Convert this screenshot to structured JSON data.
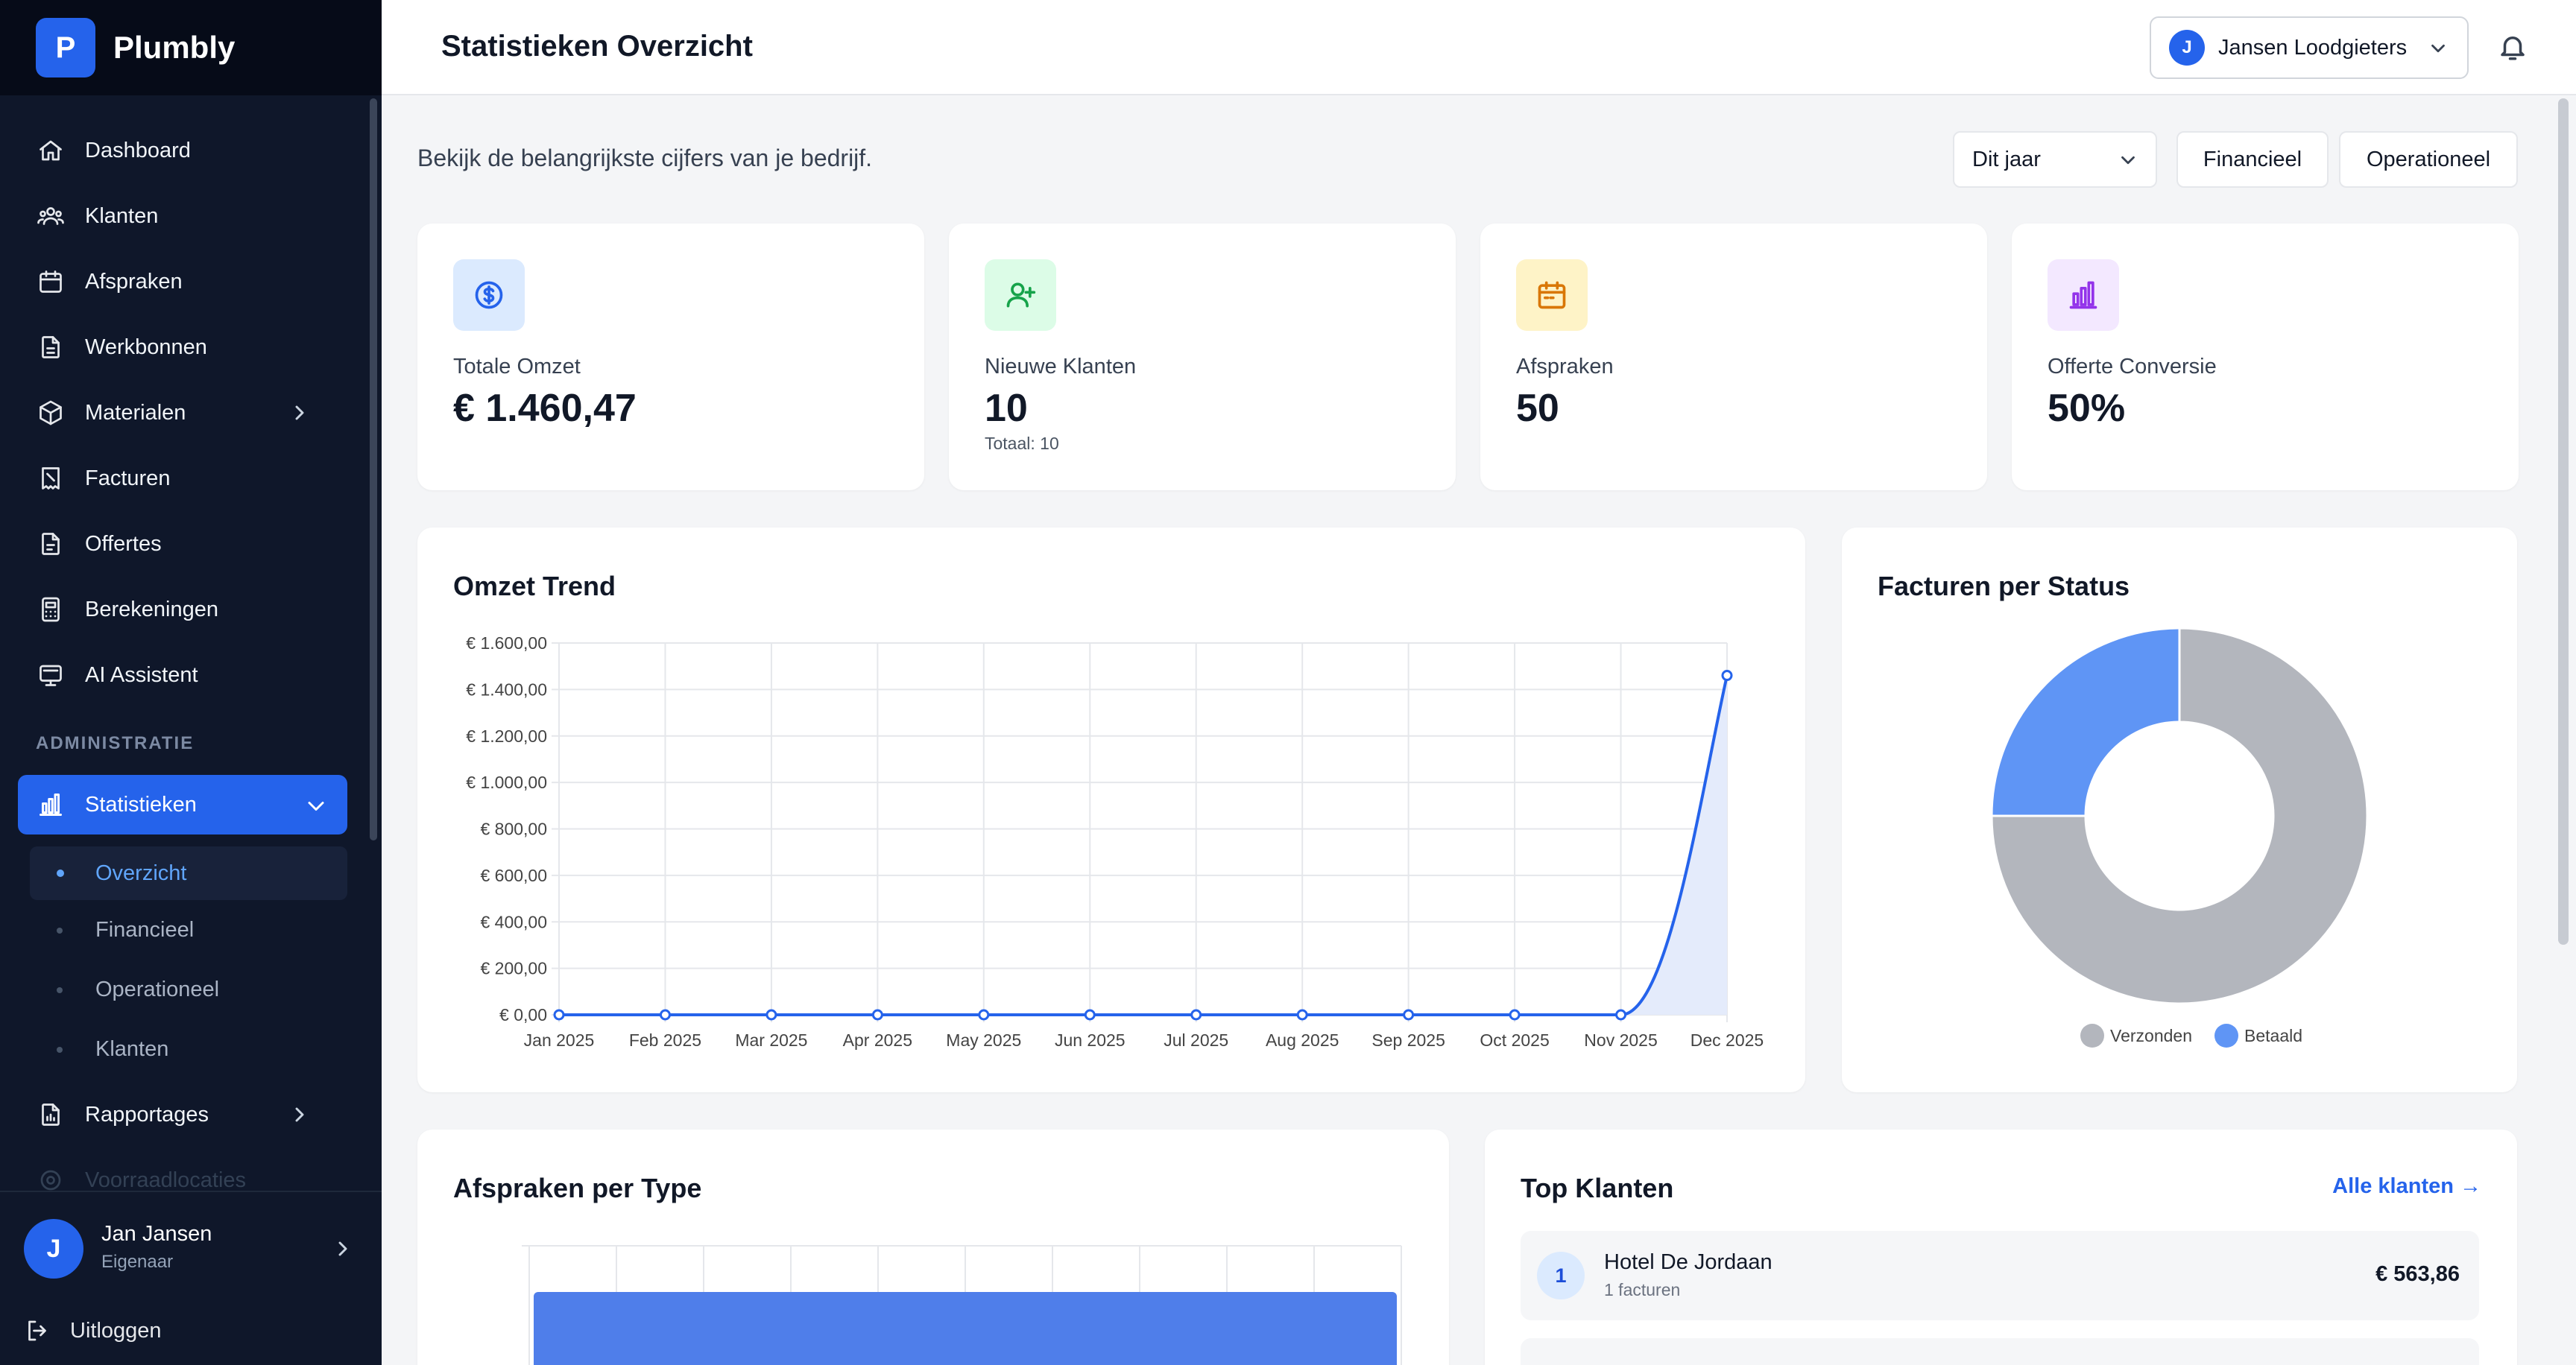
{
  "brand": {
    "logo_letter": "P",
    "name": "Plumbly"
  },
  "sidebar": {
    "items": [
      {
        "label": "Dashboard",
        "icon": "home-icon"
      },
      {
        "label": "Klanten",
        "icon": "users-icon"
      },
      {
        "label": "Afspraken",
        "icon": "calendar-icon"
      },
      {
        "label": "Werkbonnen",
        "icon": "file-icon"
      },
      {
        "label": "Materialen",
        "icon": "box-icon"
      },
      {
        "label": "Facturen",
        "icon": "receipt-icon"
      },
      {
        "label": "Offertes",
        "icon": "document-icon"
      },
      {
        "label": "Berekeningen",
        "icon": "calculator-icon"
      },
      {
        "label": "AI Assistent",
        "icon": "monitor-icon"
      }
    ],
    "section_label": "ADMINISTRATIE",
    "active_item": {
      "label": "Statistieken",
      "icon": "bar-chart-icon"
    },
    "sub_items": [
      {
        "label": "Overzicht"
      },
      {
        "label": "Financieel"
      },
      {
        "label": "Operationeel"
      },
      {
        "label": "Klanten"
      }
    ],
    "bottom_items": [
      {
        "label": "Rapportages",
        "icon": "report-icon"
      },
      {
        "label": "Voorraadlocaties",
        "icon": "location-icon"
      }
    ],
    "user": {
      "avatar_letter": "J",
      "name": "Jan Jansen",
      "role": "Eigenaar"
    },
    "logout_label": "Uitloggen"
  },
  "header": {
    "title": "Statistieken Overzicht",
    "company": {
      "avatar_letter": "J",
      "name": "Jansen Loodgieters"
    }
  },
  "main": {
    "subtitle": "Bekijk de belangrijkste cijfers van je bedrijf.",
    "period_select": "Dit jaar",
    "buttons": {
      "financial": "Financieel",
      "operational": "Operationeel"
    },
    "stats": [
      {
        "label": "Totale Omzet",
        "value": "€ 1.460,47",
        "sub": "",
        "icon": "dollar-icon",
        "bg": "#dbeafe",
        "color": "#2563eb"
      },
      {
        "label": "Nieuwe Klanten",
        "value": "10",
        "sub": "Totaal: 10",
        "icon": "user-plus-icon",
        "bg": "#dcfce7",
        "color": "#16a34a"
      },
      {
        "label": "Afspraken",
        "value": "50",
        "sub": "",
        "icon": "calendar-icon",
        "bg": "#fef3c7",
        "color": "#d97706"
      },
      {
        "label": "Offerte Conversie",
        "value": "50%",
        "sub": "",
        "icon": "bar-chart-icon",
        "bg": "#f3e8ff",
        "color": "#9333ea"
      }
    ],
    "revenue_card_title": "Omzet Trend",
    "status_card_title": "Facturen per Status",
    "appointments_card_title": "Afspraken per Type",
    "top_clients": {
      "title": "Top Klanten",
      "link": "Alle klanten →",
      "rows": [
        {
          "rank": "1",
          "name": "Hotel De Jordaan",
          "sub": "1 facturen",
          "amount": "€ 563,86"
        }
      ]
    }
  },
  "chart_data": [
    {
      "type": "area",
      "title": "Omzet Trend",
      "categories": [
        "Jan 2025",
        "Feb 2025",
        "Mar 2025",
        "Apr 2025",
        "May 2025",
        "Jun 2025",
        "Jul 2025",
        "Aug 2025",
        "Sep 2025",
        "Oct 2025",
        "Nov 2025",
        "Dec 2025"
      ],
      "values": [
        0,
        0,
        0,
        0,
        0,
        0,
        0,
        0,
        0,
        0,
        0,
        1460.47
      ],
      "ylim": [
        0,
        1600
      ],
      "yticks": [
        "€ 0,00",
        "€ 200,00",
        "€ 400,00",
        "€ 600,00",
        "€ 800,00",
        "€ 1.000,00",
        "€ 1.200,00",
        "€ 1.400,00",
        "€ 1.600,00"
      ],
      "grid": true,
      "line_color": "#2563eb",
      "fill_color": "#e4ebfb"
    },
    {
      "type": "pie",
      "title": "Facturen per Status",
      "categories": [
        "Verzonden",
        "Betaald"
      ],
      "values": [
        3,
        1
      ],
      "colors": [
        "#b3b6bd",
        "#5f95f5"
      ],
      "legend": "bottom"
    },
    {
      "type": "bar",
      "title": "Afspraken per Type",
      "values": [
        50
      ],
      "bar_color": "#4f7eea",
      "grid": true
    }
  ]
}
